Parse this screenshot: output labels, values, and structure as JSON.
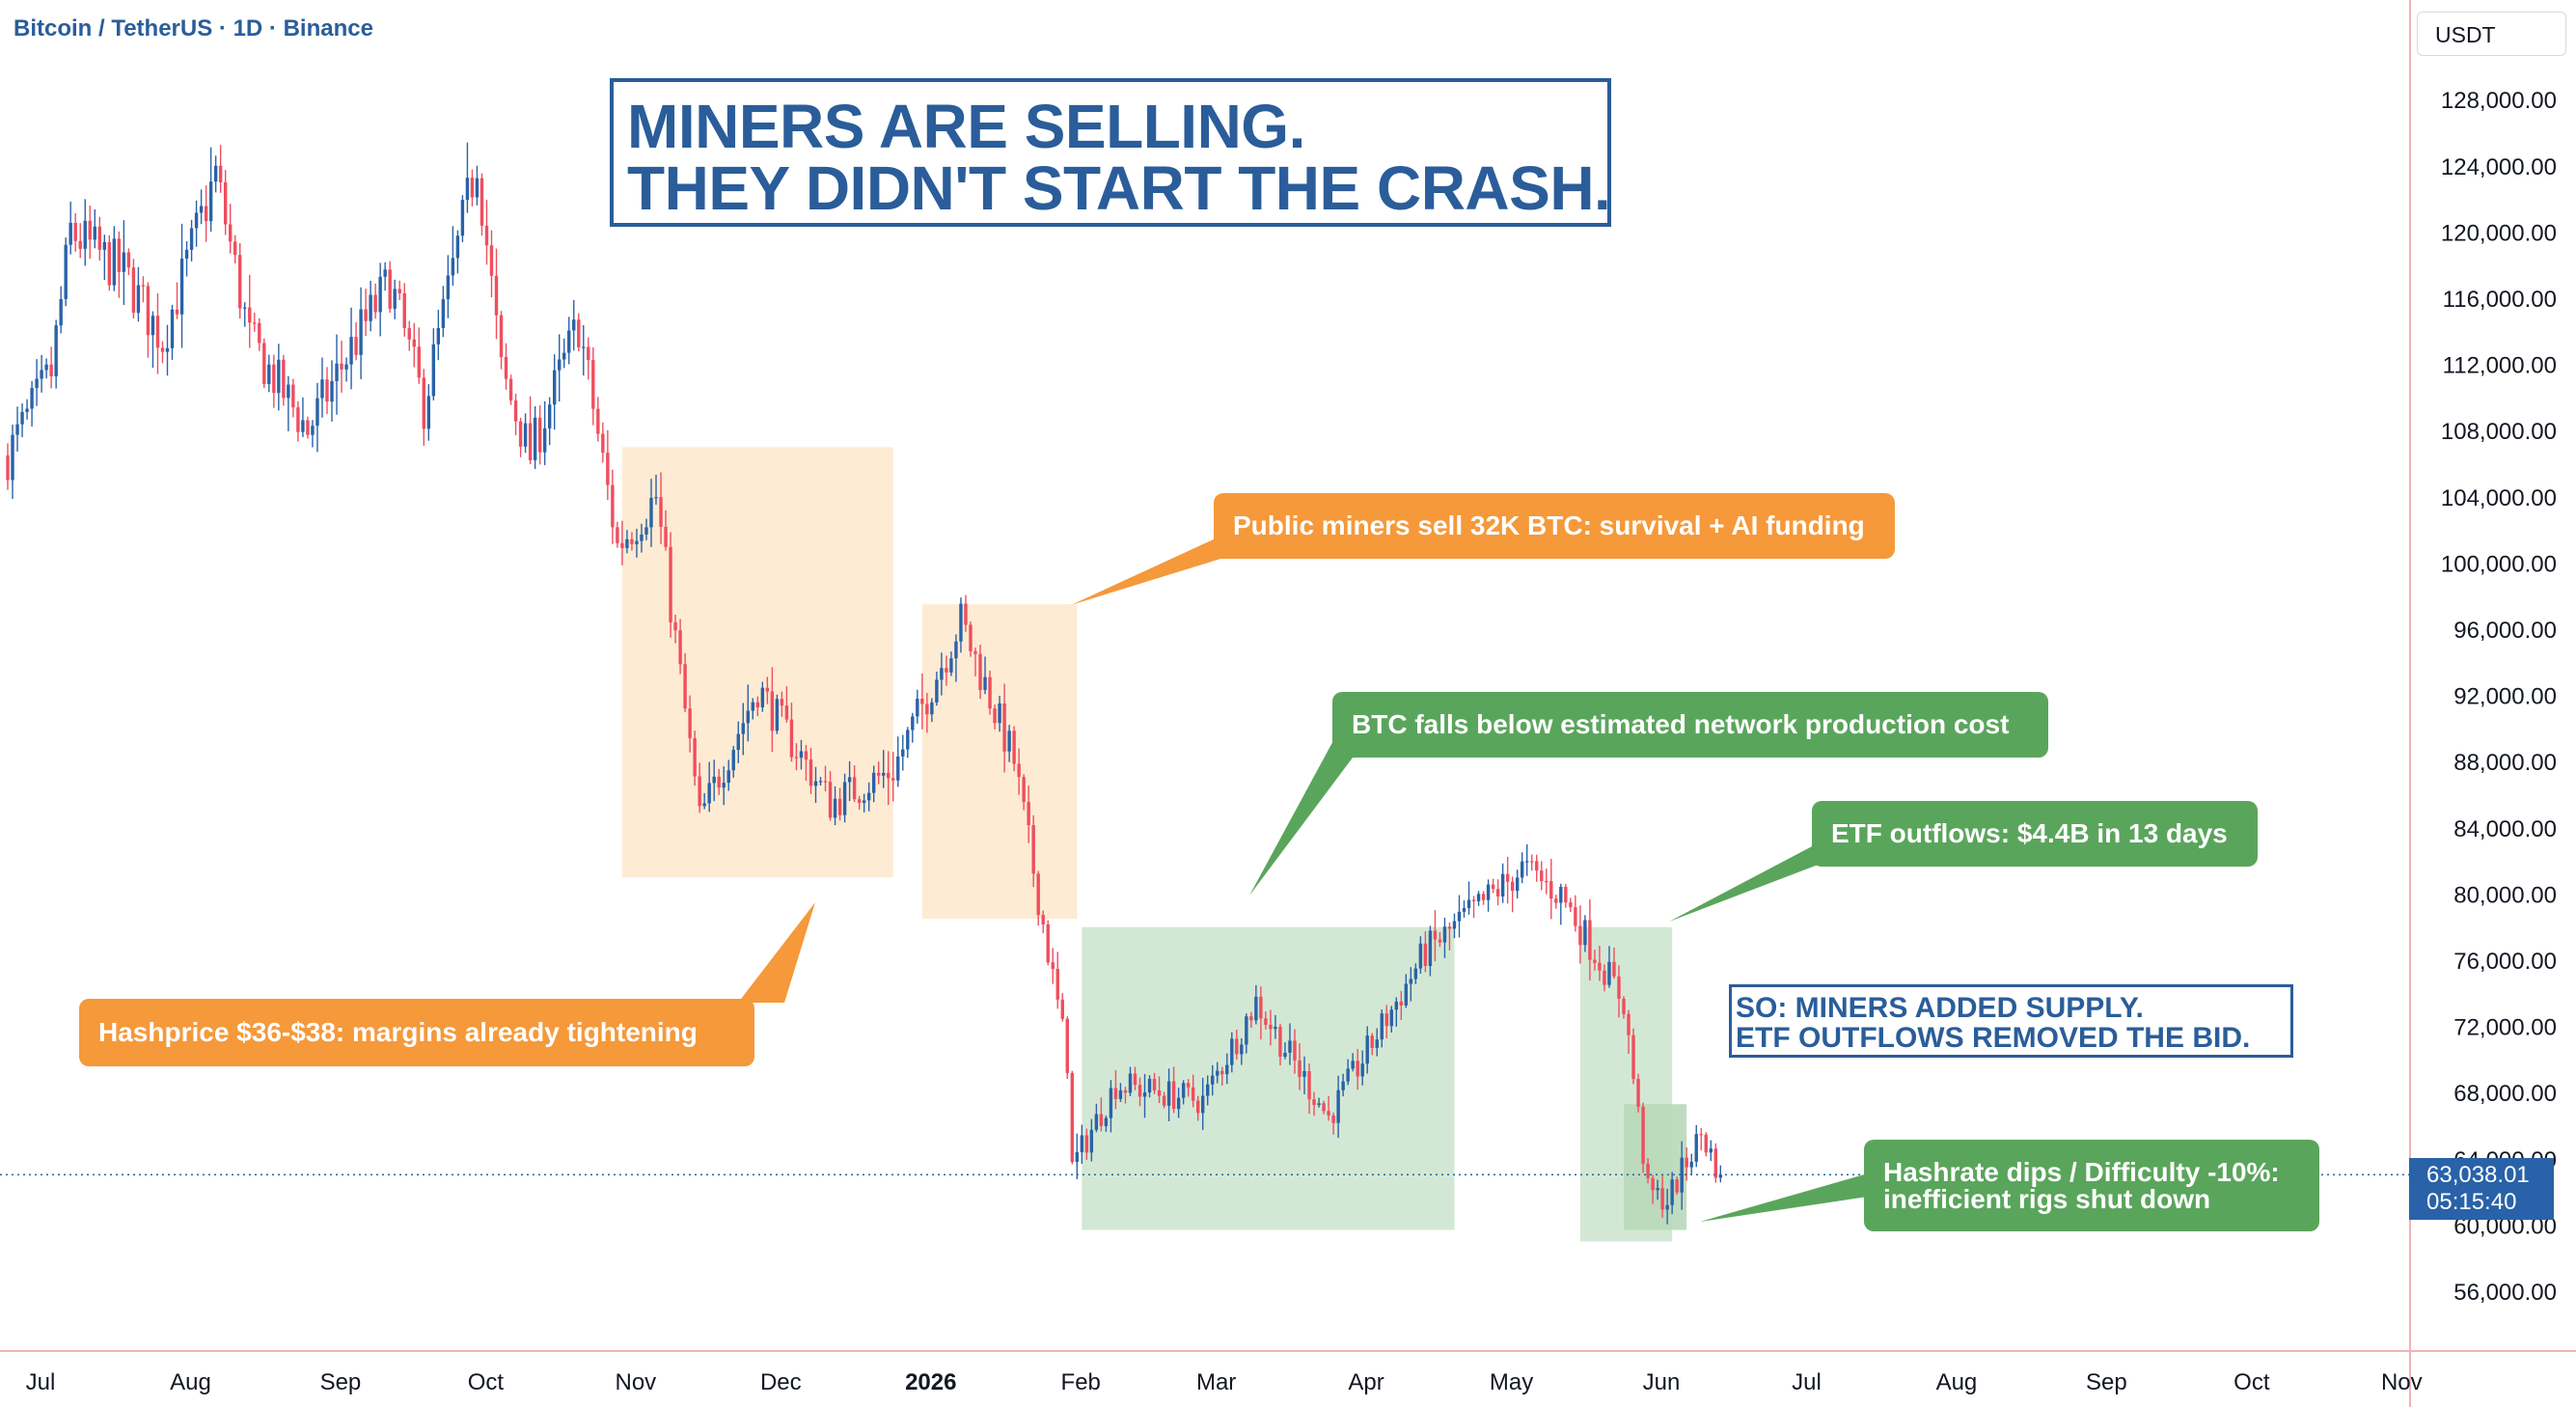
{
  "header": {
    "symbol_title": "Bitcoin / TetherUS · 1D · Binance"
  },
  "price_axis": {
    "currency": "USDT",
    "current_price": "63,038.01",
    "countdown": "05:15:40"
  },
  "headline": {
    "line1": "MINERS ARE SELLING.",
    "line2": "THEY DIDN'T START THE CRASH."
  },
  "callouts": {
    "hashprice": "Hashprice $36-$38: margins already tightening",
    "public_miners": "Public miners sell 32K BTC: survival + AI funding",
    "production_cost": "BTC falls below estimated network production cost",
    "etf_outflows": "ETF outflows: $4.4B in 13 days",
    "hashrate_line1": "Hashrate dips / Difficulty -10%:",
    "hashrate_line2": "inefficient rigs shut down"
  },
  "summary": {
    "line1": "SO: MINERS ADDED SUPPLY.",
    "line2": "ETF OUTFLOWS REMOVED THE BID."
  },
  "colors": {
    "up": "#2962a8",
    "down": "#ef4e5e",
    "brand_blue": "#2a5d9a",
    "orange": "#f5993a",
    "green": "#5aa55c",
    "orange_zone": "#fdebd3",
    "green_zone": "#d3e8d4"
  },
  "chart_data": {
    "type": "candlestick",
    "title": "Bitcoin / TetherUS · 1D · Binance",
    "x_tick_labels": [
      "Jul",
      "Aug",
      "Sep",
      "Oct",
      "Nov",
      "Dec",
      "2026",
      "Feb",
      "Mar",
      "Apr",
      "May",
      "Jun",
      "Jul",
      "Aug",
      "Sep",
      "Oct",
      "Nov"
    ],
    "y_tick_labels": [
      "56,000.00",
      "60,000.00",
      "64,000.00",
      "68,000.00",
      "72,000.00",
      "76,000.00",
      "80,000.00",
      "84,000.00",
      "88,000.00",
      "92,000.00",
      "96,000.00",
      "100,000.00",
      "104,000.00",
      "108,000.00",
      "112,000.00",
      "116,000.00",
      "120,000.00",
      "124,000.00",
      "128,000.00"
    ],
    "ylim": [
      52000,
      130000
    ],
    "last_price": 63038.01,
    "price_path": [
      {
        "date": "2025-07-01",
        "price": 106500
      },
      {
        "date": "2025-07-10",
        "price": 111500
      },
      {
        "date": "2025-07-14",
        "price": 120000
      },
      {
        "date": "2025-07-25",
        "price": 117500
      },
      {
        "date": "2025-08-02",
        "price": 113500
      },
      {
        "date": "2025-08-13",
        "price": 123500
      },
      {
        "date": "2025-08-20",
        "price": 113500
      },
      {
        "date": "2025-09-01",
        "price": 108000
      },
      {
        "date": "2025-09-10",
        "price": 113000
      },
      {
        "date": "2025-09-18",
        "price": 117000
      },
      {
        "date": "2025-09-25",
        "price": 109500
      },
      {
        "date": "2025-10-06",
        "price": 124500
      },
      {
        "date": "2025-10-11",
        "price": 111500
      },
      {
        "date": "2025-10-17",
        "price": 106500
      },
      {
        "date": "2025-10-27",
        "price": 114500
      },
      {
        "date": "2025-11-04",
        "price": 101000
      },
      {
        "date": "2025-11-12",
        "price": 104000
      },
      {
        "date": "2025-11-21",
        "price": 84500
      },
      {
        "date": "2025-12-03",
        "price": 92500
      },
      {
        "date": "2025-12-18",
        "price": 85500
      },
      {
        "date": "2025-12-31",
        "price": 87500
      },
      {
        "date": "2026-01-14",
        "price": 96500
      },
      {
        "date": "2026-01-25",
        "price": 88000
      },
      {
        "date": "2026-02-05",
        "price": 70000
      },
      {
        "date": "2026-02-06",
        "price": 63500
      },
      {
        "date": "2026-02-15",
        "price": 68500
      },
      {
        "date": "2026-03-05",
        "price": 67500
      },
      {
        "date": "2026-03-16",
        "price": 73500
      },
      {
        "date": "2026-03-31",
        "price": 66500
      },
      {
        "date": "2026-04-20",
        "price": 76500
      },
      {
        "date": "2026-05-10",
        "price": 81500
      },
      {
        "date": "2026-05-18",
        "price": 80000
      },
      {
        "date": "2026-05-23",
        "price": 77500
      },
      {
        "date": "2026-05-31",
        "price": 73500
      },
      {
        "date": "2026-06-05",
        "price": 62000
      },
      {
        "date": "2026-06-09",
        "price": 61500
      },
      {
        "date": "2026-06-16",
        "price": 65500
      },
      {
        "date": "2026-06-20",
        "price": 63038.01
      }
    ],
    "annotation_zones": [
      {
        "color": "orange",
        "from": "2025-11-05",
        "to": "2025-12-31",
        "low": 81000,
        "high": 107000
      },
      {
        "color": "orange",
        "from": "2026-01-06",
        "to": "2026-02-07",
        "low": 78500,
        "high": 97500
      },
      {
        "color": "green",
        "from": "2026-02-08",
        "to": "2026-04-26",
        "low": 59700,
        "high": 78000
      },
      {
        "color": "green",
        "from": "2026-05-22",
        "to": "2026-06-10",
        "low": 59000,
        "high": 78000
      },
      {
        "color": "green",
        "from": "2026-05-31",
        "to": "2026-06-13",
        "low": 59700,
        "high": 67300
      }
    ]
  }
}
